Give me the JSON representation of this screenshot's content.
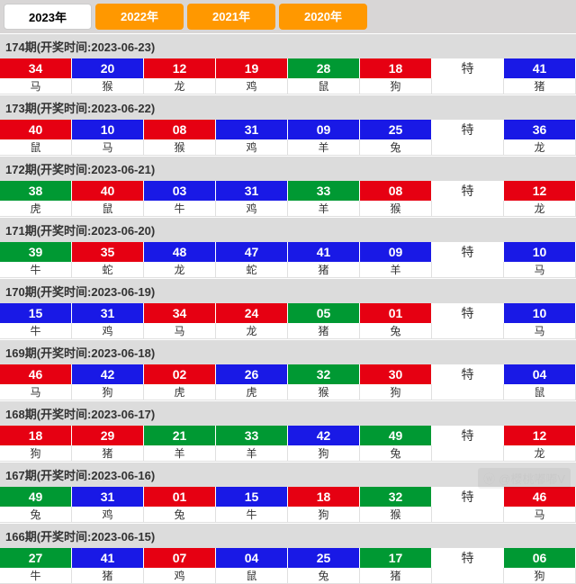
{
  "years": [
    {
      "label": "2023年",
      "active": true
    },
    {
      "label": "2022年",
      "active": false
    },
    {
      "label": "2021年",
      "active": false
    },
    {
      "label": "2020年",
      "active": false
    }
  ],
  "te_label": "特",
  "watermark": "@櫻桃嘟嘟V",
  "colors": {
    "red": "#e60012",
    "blue": "#1919e6",
    "green": "#009933",
    "tab_inactive": "#ff9800",
    "tab_active_bg": "#ffffff",
    "header_bg": "#dcdcdc"
  },
  "periods": [
    {
      "header": "174期(开奖时间:2023-06-23)",
      "balls": [
        {
          "n": "34",
          "c": "red",
          "z": "马"
        },
        {
          "n": "20",
          "c": "blue",
          "z": "猴"
        },
        {
          "n": "12",
          "c": "red",
          "z": "龙"
        },
        {
          "n": "19",
          "c": "red",
          "z": "鸡"
        },
        {
          "n": "28",
          "c": "green",
          "z": "鼠"
        },
        {
          "n": "18",
          "c": "red",
          "z": "狗"
        }
      ],
      "special": {
        "n": "41",
        "c": "blue",
        "z": "猪"
      }
    },
    {
      "header": "173期(开奖时间:2023-06-22)",
      "balls": [
        {
          "n": "40",
          "c": "red",
          "z": "鼠"
        },
        {
          "n": "10",
          "c": "blue",
          "z": "马"
        },
        {
          "n": "08",
          "c": "red",
          "z": "猴"
        },
        {
          "n": "31",
          "c": "blue",
          "z": "鸡"
        },
        {
          "n": "09",
          "c": "blue",
          "z": "羊"
        },
        {
          "n": "25",
          "c": "blue",
          "z": "兔"
        }
      ],
      "special": {
        "n": "36",
        "c": "blue",
        "z": "龙"
      }
    },
    {
      "header": "172期(开奖时间:2023-06-21)",
      "balls": [
        {
          "n": "38",
          "c": "green",
          "z": "虎"
        },
        {
          "n": "40",
          "c": "red",
          "z": "鼠"
        },
        {
          "n": "03",
          "c": "blue",
          "z": "牛"
        },
        {
          "n": "31",
          "c": "blue",
          "z": "鸡"
        },
        {
          "n": "33",
          "c": "green",
          "z": "羊"
        },
        {
          "n": "08",
          "c": "red",
          "z": "猴"
        }
      ],
      "special": {
        "n": "12",
        "c": "red",
        "z": "龙"
      }
    },
    {
      "header": "171期(开奖时间:2023-06-20)",
      "balls": [
        {
          "n": "39",
          "c": "green",
          "z": "牛"
        },
        {
          "n": "35",
          "c": "red",
          "z": "蛇"
        },
        {
          "n": "48",
          "c": "blue",
          "z": "龙"
        },
        {
          "n": "47",
          "c": "blue",
          "z": "蛇"
        },
        {
          "n": "41",
          "c": "blue",
          "z": "猪"
        },
        {
          "n": "09",
          "c": "blue",
          "z": "羊"
        }
      ],
      "special": {
        "n": "10",
        "c": "blue",
        "z": "马"
      }
    },
    {
      "header": "170期(开奖时间:2023-06-19)",
      "balls": [
        {
          "n": "15",
          "c": "blue",
          "z": "牛"
        },
        {
          "n": "31",
          "c": "blue",
          "z": "鸡"
        },
        {
          "n": "34",
          "c": "red",
          "z": "马"
        },
        {
          "n": "24",
          "c": "red",
          "z": "龙"
        },
        {
          "n": "05",
          "c": "green",
          "z": "猪"
        },
        {
          "n": "01",
          "c": "red",
          "z": "兔"
        }
      ],
      "special": {
        "n": "10",
        "c": "blue",
        "z": "马"
      }
    },
    {
      "header": "169期(开奖时间:2023-06-18)",
      "balls": [
        {
          "n": "46",
          "c": "red",
          "z": "马"
        },
        {
          "n": "42",
          "c": "blue",
          "z": "狗"
        },
        {
          "n": "02",
          "c": "red",
          "z": "虎"
        },
        {
          "n": "26",
          "c": "blue",
          "z": "虎"
        },
        {
          "n": "32",
          "c": "green",
          "z": "猴"
        },
        {
          "n": "30",
          "c": "red",
          "z": "狗"
        }
      ],
      "special": {
        "n": "04",
        "c": "blue",
        "z": "鼠"
      }
    },
    {
      "header": "168期(开奖时间:2023-06-17)",
      "balls": [
        {
          "n": "18",
          "c": "red",
          "z": "狗"
        },
        {
          "n": "29",
          "c": "red",
          "z": "猪"
        },
        {
          "n": "21",
          "c": "green",
          "z": "羊"
        },
        {
          "n": "33",
          "c": "green",
          "z": "羊"
        },
        {
          "n": "42",
          "c": "blue",
          "z": "狗"
        },
        {
          "n": "49",
          "c": "green",
          "z": "兔"
        }
      ],
      "special": {
        "n": "12",
        "c": "red",
        "z": "龙"
      }
    },
    {
      "header": "167期(开奖时间:2023-06-16)",
      "balls": [
        {
          "n": "49",
          "c": "green",
          "z": "兔"
        },
        {
          "n": "31",
          "c": "blue",
          "z": "鸡"
        },
        {
          "n": "01",
          "c": "red",
          "z": "兔"
        },
        {
          "n": "15",
          "c": "blue",
          "z": "牛"
        },
        {
          "n": "18",
          "c": "red",
          "z": "狗"
        },
        {
          "n": "32",
          "c": "green",
          "z": "猴"
        }
      ],
      "special": {
        "n": "46",
        "c": "red",
        "z": "马"
      }
    },
    {
      "header": "166期(开奖时间:2023-06-15)",
      "balls": [
        {
          "n": "27",
          "c": "green",
          "z": "牛"
        },
        {
          "n": "41",
          "c": "blue",
          "z": "猪"
        },
        {
          "n": "07",
          "c": "red",
          "z": "鸡"
        },
        {
          "n": "04",
          "c": "blue",
          "z": "鼠"
        },
        {
          "n": "25",
          "c": "blue",
          "z": "兔"
        },
        {
          "n": "17",
          "c": "green",
          "z": "猪"
        }
      ],
      "special": {
        "n": "06",
        "c": "green",
        "z": "狗"
      }
    }
  ]
}
